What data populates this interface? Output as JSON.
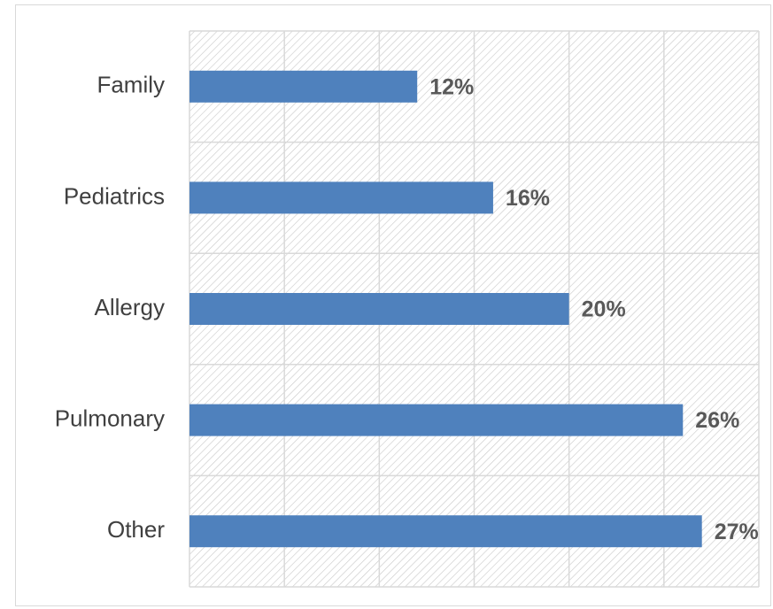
{
  "chart_data": {
    "type": "barh",
    "categories": [
      "Family",
      "Pediatrics",
      "Allergy",
      "Pulmonary",
      "Other"
    ],
    "values": [
      12,
      16,
      20,
      26,
      27
    ],
    "value_labels": [
      "12%",
      "16%",
      "20%",
      "26%",
      "27%"
    ],
    "color": "#4f81bd",
    "xlim": [
      0,
      30
    ],
    "xticks": [
      0,
      5,
      10,
      15,
      20,
      25,
      30
    ],
    "grid": true
  }
}
